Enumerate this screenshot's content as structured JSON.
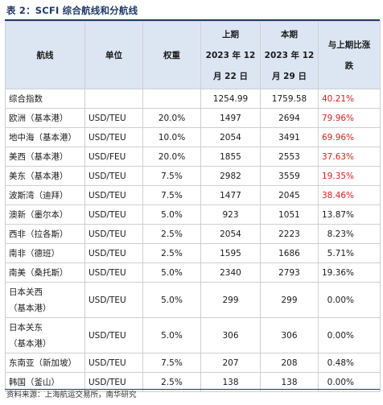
{
  "title": "表 2：SCFI 综合航线和分航线",
  "headers": {
    "route": "航线",
    "unit": "单位",
    "weight": "权重",
    "prev_line1": "上期",
    "prev_line2": "2023 年 12",
    "prev_line3": "月 22 日",
    "curr_line1": "本期",
    "curr_line2": "2023 年 12",
    "curr_line3": "月 29 日",
    "change_line1": "与上期比涨",
    "change_line2": "跌"
  },
  "rows": [
    {
      "route": "综合指数",
      "unit": "",
      "weight": "",
      "prev": "1254.99",
      "curr": "1759.58",
      "change": "40.21%",
      "highlight": true
    },
    {
      "route": "欧洲（基本港）",
      "unit": "USD/TEU",
      "weight": "20.0%",
      "prev": "1497",
      "curr": "2694",
      "change": "79.96%",
      "highlight": true
    },
    {
      "route": "地中海（基本港）",
      "unit": "USD/TEU",
      "weight": "10.0%",
      "prev": "2054",
      "curr": "3491",
      "change": "69.96%",
      "highlight": true
    },
    {
      "route": "美西（基本港）",
      "unit": "USD/FEU",
      "weight": "20.0%",
      "prev": "1855",
      "curr": "2553",
      "change": "37.63%",
      "highlight": true
    },
    {
      "route": "美东（基本港）",
      "unit": "USD/TEU",
      "weight": "7.5%",
      "prev": "2982",
      "curr": "3559",
      "change": "19.35%",
      "highlight": true
    },
    {
      "route": "波斯湾（迪拜）",
      "unit": "USD/TEU",
      "weight": "7.5%",
      "prev": "1477",
      "curr": "2045",
      "change": "38.46%",
      "highlight": true
    },
    {
      "route": "澳新（墨尔本）",
      "unit": "USD/TEU",
      "weight": "5.0%",
      "prev": "923",
      "curr": "1051",
      "change": "13.87%",
      "highlight": false
    },
    {
      "route": "西非（拉各斯）",
      "unit": "USD/TEU",
      "weight": "2.5%",
      "prev": "2054",
      "curr": "2223",
      "change": "8.23%",
      "highlight": false
    },
    {
      "route": "南非（德班）",
      "unit": "USD/TEU",
      "weight": "2.5%",
      "prev": "1595",
      "curr": "1686",
      "change": "5.71%",
      "highlight": false
    },
    {
      "route": "南美（桑托斯）",
      "unit": "USD/TEU",
      "weight": "5.0%",
      "prev": "2340",
      "curr": "2793",
      "change": "19.36%",
      "highlight": false
    }
  ],
  "tall_rows": [
    {
      "route_line1": "日本关西",
      "route_line2": "（基本港）",
      "unit": "USD/TEU",
      "weight": "5.0%",
      "prev": "299",
      "curr": "299",
      "change": "0.00%"
    },
    {
      "route_line1": "日本关东",
      "route_line2": "（基本港）",
      "unit": "USD/TEU",
      "weight": "5.0%",
      "prev": "306",
      "curr": "306",
      "change": "0.00%"
    }
  ],
  "tail_rows": [
    {
      "route": "东南亚（新加坡）",
      "unit": "USD/TEU",
      "weight": "7.5%",
      "prev": "207",
      "curr": "208",
      "change": "0.48%"
    },
    {
      "route": "韩国（釜山）",
      "unit": "USD/TEU",
      "weight": "2.5%",
      "prev": "138",
      "curr": "138",
      "change": "0.00%"
    }
  ],
  "source": "资料来源：上海航运交易所，南华研究",
  "colors": {
    "header_bg": "#dce6f3",
    "up": "#d42020",
    "title": "#1f3a66"
  }
}
